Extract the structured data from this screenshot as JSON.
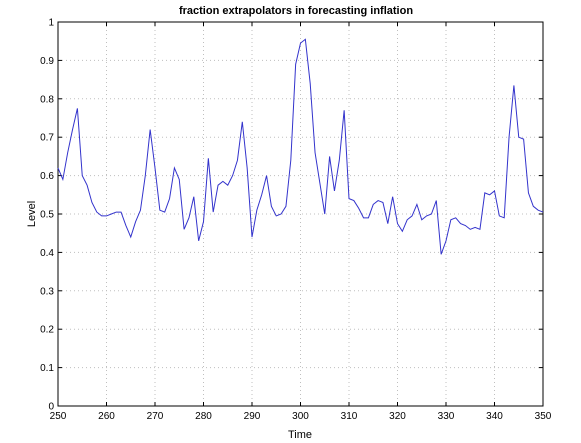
{
  "chart_data": {
    "type": "line",
    "title": "fraction extrapolators in forecasting inflation",
    "xlabel": "Time",
    "ylabel": "Level",
    "xlim": [
      250,
      350
    ],
    "ylim": [
      0,
      1
    ],
    "xticks": [
      250,
      260,
      270,
      280,
      290,
      300,
      310,
      320,
      330,
      340,
      350
    ],
    "yticks": [
      0,
      0.1,
      0.2,
      0.3,
      0.4,
      0.5,
      0.6,
      0.7,
      0.8,
      0.9,
      1
    ],
    "grid": true,
    "line_color": "#3333cc",
    "series": [
      {
        "x": [
          250,
          251,
          252,
          253,
          254,
          255,
          256,
          257,
          258,
          259,
          260,
          261,
          262,
          263,
          264,
          265,
          266,
          267,
          268,
          269,
          270,
          271,
          272,
          273,
          274,
          275,
          276,
          277,
          278,
          279,
          280,
          281,
          282,
          283,
          284,
          285,
          286,
          287,
          288,
          289,
          290,
          291,
          292,
          293,
          294,
          295,
          296,
          297,
          298,
          299,
          300,
          301,
          302,
          303,
          304,
          305,
          306,
          307,
          308,
          309,
          310,
          311,
          312,
          313,
          314,
          315,
          316,
          317,
          318,
          319,
          320,
          321,
          322,
          323,
          324,
          325,
          326,
          327,
          328,
          329,
          330,
          331,
          332,
          333,
          334,
          335,
          336,
          337,
          338,
          339,
          340,
          341,
          342,
          343,
          344,
          345,
          346,
          347,
          348,
          349,
          350
        ],
        "y": [
          0.62,
          0.59,
          0.66,
          0.72,
          0.775,
          0.6,
          0.575,
          0.53,
          0.505,
          0.495,
          0.495,
          0.5,
          0.505,
          0.505,
          0.47,
          0.44,
          0.48,
          0.51,
          0.6,
          0.72,
          0.62,
          0.51,
          0.505,
          0.54,
          0.62,
          0.59,
          0.46,
          0.49,
          0.545,
          0.43,
          0.48,
          0.645,
          0.505,
          0.575,
          0.585,
          0.575,
          0.6,
          0.64,
          0.74,
          0.62,
          0.44,
          0.51,
          0.55,
          0.6,
          0.52,
          0.495,
          0.5,
          0.52,
          0.64,
          0.89,
          0.945,
          0.955,
          0.84,
          0.66,
          0.58,
          0.5,
          0.65,
          0.56,
          0.64,
          0.77,
          0.54,
          0.535,
          0.515,
          0.49,
          0.49,
          0.525,
          0.535,
          0.53,
          0.475,
          0.545,
          0.475,
          0.455,
          0.485,
          0.495,
          0.525,
          0.485,
          0.495,
          0.5,
          0.535,
          0.395,
          0.43,
          0.485,
          0.49,
          0.475,
          0.47,
          0.46,
          0.465,
          0.46,
          0.555,
          0.55,
          0.56,
          0.495,
          0.49,
          0.7,
          0.835,
          0.7,
          0.695,
          0.555,
          0.52,
          0.51,
          0.505
        ]
      }
    ]
  }
}
